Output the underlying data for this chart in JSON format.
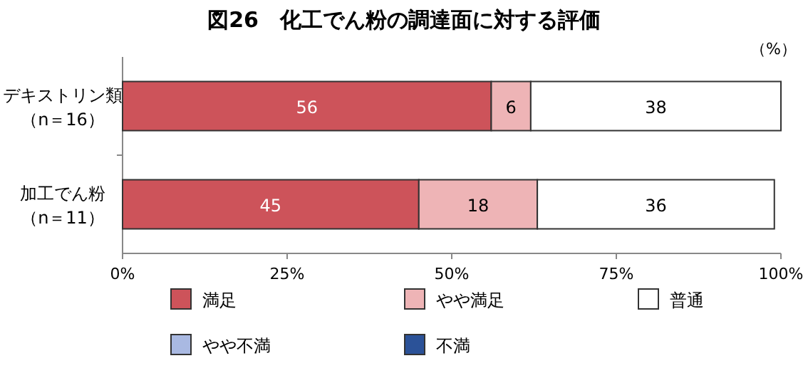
{
  "chart_data": {
    "type": "bar",
    "orientation": "horizontal",
    "stacked": true,
    "title": "図26　化工でん粉の調達面に対する評価",
    "categories": [
      "デキストリン類（n＝16）",
      "加工でん粉（n＝11）"
    ],
    "series": [
      {
        "name": "満足",
        "color": "#cd535a",
        "values": [
          56,
          45
        ],
        "value_labels": [
          "56",
          "45"
        ]
      },
      {
        "name": "やや満足",
        "color": "#eeb4b6",
        "values": [
          6,
          18
        ],
        "value_labels": [
          "6",
          "18"
        ]
      },
      {
        "name": "普通",
        "color": "#ffffff",
        "values": [
          38,
          36
        ],
        "value_labels": [
          "38",
          "36"
        ]
      },
      {
        "name": "やや不満",
        "color": "#a9b9e2",
        "values": [
          0,
          0
        ]
      },
      {
        "name": "不満",
        "color": "#2b5298",
        "values": [
          0,
          0
        ]
      }
    ],
    "xlim": [
      0,
      100
    ],
    "xticks": [
      {
        "value": 0,
        "label": "0%"
      },
      {
        "value": 25,
        "label": "25%"
      },
      {
        "value": 50,
        "label": "50%"
      },
      {
        "value": 75,
        "label": "75%"
      },
      {
        "value": 100,
        "label": "100%"
      }
    ],
    "annotations": [
      "（%）"
    ],
    "legend": "bottom",
    "grid": false
  }
}
